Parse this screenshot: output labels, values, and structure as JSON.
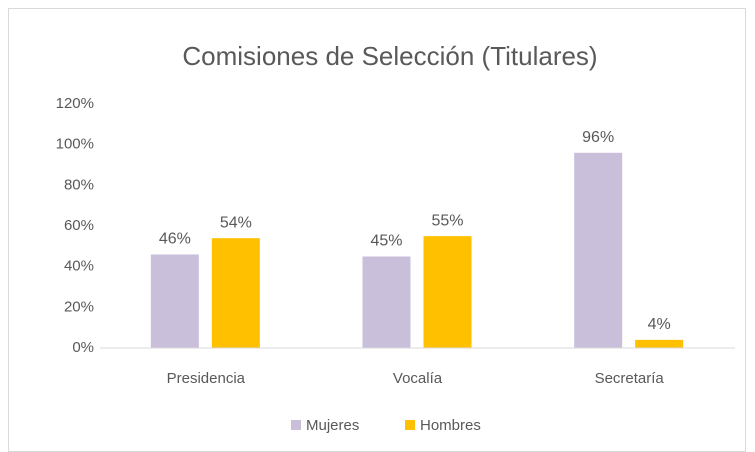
{
  "chart_data": {
    "type": "bar",
    "title": "Comisiones de Selección (Titulares)",
    "categories": [
      "Presidencia",
      "Vocalía",
      "Secretaría"
    ],
    "series": [
      {
        "name": "Mujeres",
        "color": "#c9bfdb",
        "values": [
          46,
          45,
          96
        ],
        "value_labels": [
          "46%",
          "45%",
          "96%"
        ]
      },
      {
        "name": "Hombres",
        "color": "#ffc000",
        "values": [
          54,
          55,
          4
        ],
        "value_labels": [
          "54%",
          "55%",
          "4%"
        ]
      }
    ],
    "ylim": [
      0,
      120
    ],
    "yticks": [
      {
        "value": 0,
        "label": "0%"
      },
      {
        "value": 20,
        "label": "20%"
      },
      {
        "value": 40,
        "label": "40%"
      },
      {
        "value": 60,
        "label": "60%"
      },
      {
        "value": 80,
        "label": "80%"
      },
      {
        "value": 100,
        "label": "100%"
      },
      {
        "value": 120,
        "label": "120%"
      }
    ],
    "grid": false,
    "legend": "bottom"
  }
}
